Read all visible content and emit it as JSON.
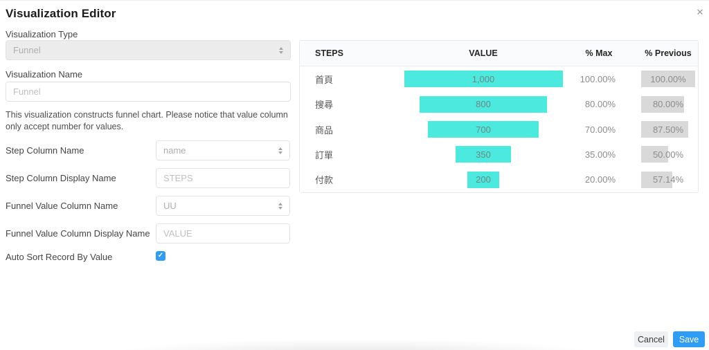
{
  "dialog": {
    "title": "Visualization Editor",
    "close_icon": "✕"
  },
  "form": {
    "visualization_type": {
      "label": "Visualization Type",
      "value": "Funnel"
    },
    "visualization_name": {
      "label": "Visualization Name",
      "placeholder": "Funnel"
    },
    "description": "This visualization constructs funnel chart. Please notice that value column only accept number for values.",
    "step_column_name": {
      "label": "Step Column Name",
      "value": "name"
    },
    "step_column_display_name": {
      "label": "Step Column Display Name",
      "placeholder": "STEPS"
    },
    "funnel_value_column_name": {
      "label": "Funnel Value Column Name",
      "value": "UU"
    },
    "funnel_value_column_display_name": {
      "label": "Funnel Value Column Display Name",
      "placeholder": "VALUE"
    },
    "auto_sort": {
      "label": "Auto Sort Record By Value",
      "checked": true
    }
  },
  "chart_data": {
    "type": "table",
    "columns": [
      "STEPS",
      "VALUE",
      "% Max",
      "% Previous"
    ],
    "rows": [
      {
        "step": "首頁",
        "value_label": "1,000",
        "value": 1000,
        "pct_max_label": "100.00%",
        "pct_max": 100,
        "pct_prev_label": "100.00%",
        "pct_prev": 100
      },
      {
        "step": "搜尋",
        "value_label": "800",
        "value": 800,
        "pct_max_label": "80.00%",
        "pct_max": 80,
        "pct_prev_label": "80.00%",
        "pct_prev": 80
      },
      {
        "step": "商品",
        "value_label": "700",
        "value": 700,
        "pct_max_label": "70.00%",
        "pct_max": 70,
        "pct_prev_label": "87.50%",
        "pct_prev": 87.5
      },
      {
        "step": "訂單",
        "value_label": "350",
        "value": 350,
        "pct_max_label": "35.00%",
        "pct_max": 35,
        "pct_prev_label": "50.00%",
        "pct_prev": 50
      },
      {
        "step": "付款",
        "value_label": "200",
        "value": 200,
        "pct_max_label": "20.00%",
        "pct_max": 20,
        "pct_prev_label": "57.14%",
        "pct_prev": 57.14
      }
    ],
    "max_value": 1000,
    "bar_color": "#4be9de",
    "badge_color": "#d9d9d9"
  },
  "footer": {
    "cancel_label": "Cancel",
    "save_label": "Save"
  },
  "colors": {
    "accent_blue": "#2f9cf5",
    "funnel_bar": "#4be9de",
    "badge_gray": "#d9d9d9"
  }
}
